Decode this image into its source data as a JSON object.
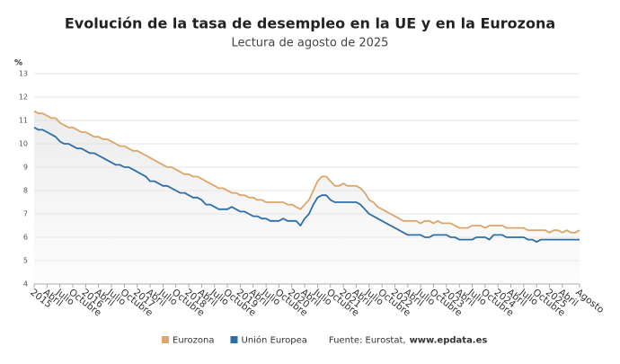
{
  "chart_data": {
    "type": "line",
    "title": "Evolución de la tasa de desempleo en la UE y en la Eurozona",
    "subtitle": "Lectura de agosto de 2025",
    "y_label": "%",
    "source_label": "Fuente: Eurostat,",
    "source_url": "www.epdata.es",
    "ylim": [
      4,
      13
    ],
    "yticks": [
      4,
      5,
      6,
      7,
      8,
      9,
      10,
      11,
      12,
      13
    ],
    "grid": true,
    "categories": [
      "2015",
      null,
      null,
      "Abril",
      null,
      null,
      "Julio",
      null,
      null,
      "Octubre",
      null,
      null,
      "2016",
      null,
      null,
      "Abril",
      null,
      null,
      "Julio",
      null,
      null,
      "Octubre",
      null,
      null,
      "2017",
      null,
      null,
      "Abril",
      null,
      null,
      "Julio",
      null,
      null,
      "Octubre",
      null,
      null,
      "2018",
      null,
      null,
      "Abril",
      null,
      null,
      "Julio",
      null,
      null,
      "Octubre",
      null,
      null,
      "2019",
      null,
      null,
      "Abril",
      null,
      null,
      "Julio",
      null,
      null,
      "Octubre",
      null,
      null,
      "2020",
      null,
      null,
      "Abril",
      null,
      null,
      "Julio",
      null,
      null,
      "Octubre",
      null,
      null,
      "2021",
      null,
      null,
      "Abril",
      null,
      null,
      "Julio",
      null,
      null,
      "Octubre",
      null,
      null,
      "2022",
      null,
      null,
      "Abril",
      null,
      null,
      "Julio",
      null,
      null,
      "Octubre",
      null,
      null,
      "2023",
      null,
      null,
      "Abril",
      null,
      null,
      "Julio",
      null,
      null,
      "Octubre",
      null,
      null,
      "2024",
      null,
      null,
      "Abril",
      null,
      null,
      "Julio",
      null,
      null,
      "Octubre",
      null,
      null,
      "2025",
      null,
      null,
      "Abril",
      null,
      null,
      null,
      "Agosto"
    ],
    "series": [
      {
        "name": "Eurozona",
        "color": "#dba66a",
        "values": [
          11.4,
          11.3,
          11.3,
          11.2,
          11.1,
          11.1,
          10.9,
          10.8,
          10.7,
          10.7,
          10.6,
          10.5,
          10.5,
          10.4,
          10.3,
          10.3,
          10.2,
          10.2,
          10.1,
          10.0,
          9.9,
          9.9,
          9.8,
          9.7,
          9.7,
          9.6,
          9.5,
          9.4,
          9.3,
          9.2,
          9.1,
          9.0,
          9.0,
          8.9,
          8.8,
          8.7,
          8.7,
          8.6,
          8.6,
          8.5,
          8.4,
          8.3,
          8.2,
          8.1,
          8.1,
          8.0,
          7.9,
          7.9,
          7.8,
          7.8,
          7.7,
          7.7,
          7.6,
          7.6,
          7.5,
          7.5,
          7.5,
          7.5,
          7.5,
          7.4,
          7.4,
          7.3,
          7.2,
          7.4,
          7.6,
          8.0,
          8.4,
          8.6,
          8.6,
          8.4,
          8.2,
          8.2,
          8.3,
          8.2,
          8.2,
          8.2,
          8.1,
          7.9,
          7.6,
          7.5,
          7.3,
          7.2,
          7.1,
          7.0,
          6.9,
          6.8,
          6.7,
          6.7,
          6.7,
          6.7,
          6.6,
          6.7,
          6.7,
          6.6,
          6.7,
          6.6,
          6.6,
          6.6,
          6.5,
          6.4,
          6.4,
          6.4,
          6.5,
          6.5,
          6.5,
          6.4,
          6.5,
          6.5,
          6.5,
          6.5,
          6.4,
          6.4,
          6.4,
          6.4,
          6.4,
          6.3,
          6.3,
          6.3,
          6.3,
          6.3,
          6.2,
          6.3,
          6.3,
          6.2,
          6.3,
          6.2,
          6.2,
          6.3
        ]
      },
      {
        "name": "Unión Europea",
        "color": "#2f6ea6",
        "values": [
          10.7,
          10.6,
          10.6,
          10.5,
          10.4,
          10.3,
          10.1,
          10.0,
          10.0,
          9.9,
          9.8,
          9.8,
          9.7,
          9.6,
          9.6,
          9.5,
          9.4,
          9.3,
          9.2,
          9.1,
          9.1,
          9.0,
          9.0,
          8.9,
          8.8,
          8.7,
          8.6,
          8.4,
          8.4,
          8.3,
          8.2,
          8.2,
          8.1,
          8.0,
          7.9,
          7.9,
          7.8,
          7.7,
          7.7,
          7.6,
          7.4,
          7.4,
          7.3,
          7.2,
          7.2,
          7.2,
          7.3,
          7.2,
          7.1,
          7.1,
          7.0,
          6.9,
          6.9,
          6.8,
          6.8,
          6.7,
          6.7,
          6.7,
          6.8,
          6.7,
          6.7,
          6.7,
          6.5,
          6.8,
          7.0,
          7.4,
          7.7,
          7.8,
          7.8,
          7.6,
          7.5,
          7.5,
          7.5,
          7.5,
          7.5,
          7.5,
          7.4,
          7.2,
          7.0,
          6.9,
          6.8,
          6.7,
          6.6,
          6.5,
          6.4,
          6.3,
          6.2,
          6.1,
          6.1,
          6.1,
          6.1,
          6.0,
          6.0,
          6.1,
          6.1,
          6.1,
          6.1,
          6.0,
          6.0,
          5.9,
          5.9,
          5.9,
          5.9,
          6.0,
          6.0,
          6.0,
          5.9,
          6.1,
          6.1,
          6.1,
          6.0,
          6.0,
          6.0,
          6.0,
          6.0,
          5.9,
          5.9,
          5.8,
          5.9,
          5.9,
          5.9,
          5.9,
          5.9,
          5.9,
          5.9,
          5.9,
          5.9,
          5.9
        ]
      }
    ]
  }
}
